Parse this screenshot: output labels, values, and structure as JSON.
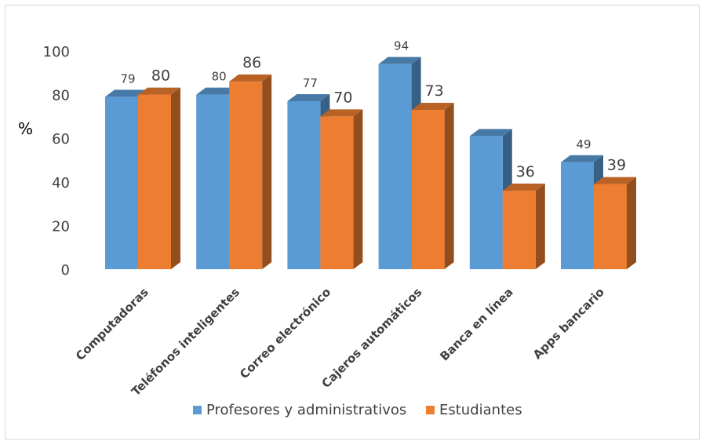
{
  "chart_data": {
    "type": "bar",
    "title": "",
    "ylabel": "%",
    "xlabel": "",
    "ylim": [
      0,
      100
    ],
    "yticks": [
      0,
      20,
      40,
      60,
      80,
      100
    ],
    "grid": false,
    "legend_position": "bottom",
    "categories": [
      "Computadoras",
      "Teléfonos inteligentes",
      "Correo electrónico",
      "Cajeros automáticos",
      "Banca en línea",
      "Apps bancario"
    ],
    "series": [
      {
        "name": "Profesores y administrativos",
        "color": "#5b9bd5",
        "values": [
          79,
          80,
          77,
          94,
          61,
          49
        ],
        "labels": [
          "79",
          "80",
          "77",
          "94",
          "",
          "49"
        ]
      },
      {
        "name": "Estudiantes",
        "color": "#ed7d31",
        "values": [
          80,
          86,
          70,
          73,
          36,
          39
        ],
        "labels": [
          "80",
          "86",
          "70",
          "73",
          "36",
          "39"
        ]
      }
    ]
  }
}
